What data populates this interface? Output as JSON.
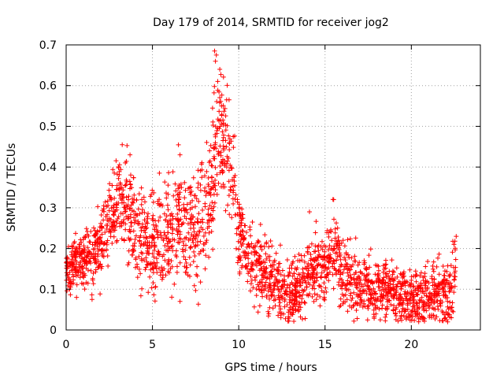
{
  "chart_data": {
    "type": "scatter",
    "title": "Day 179 of 2014, SRMTID for receiver jog2",
    "xlabel": "GPS time / hours",
    "ylabel": "SRMTID / TECUs",
    "xlim": [
      0,
      24
    ],
    "ylim": [
      0,
      0.7
    ],
    "grid": true,
    "marker": "+",
    "color": "#ff0000",
    "x_ticks": [
      "0",
      "5",
      "10",
      "15",
      "20"
    ],
    "y_ticks": [
      "0",
      "0.1",
      "0.2",
      "0.3",
      "0.4",
      "0.5",
      "0.6",
      "0.7"
    ],
    "trend": [
      [
        0.0,
        0.15
      ],
      [
        0.5,
        0.16
      ],
      [
        1.0,
        0.17
      ],
      [
        1.5,
        0.18
      ],
      [
        2.0,
        0.21
      ],
      [
        2.5,
        0.27
      ],
      [
        3.0,
        0.31
      ],
      [
        3.5,
        0.3
      ],
      [
        4.0,
        0.26
      ],
      [
        4.5,
        0.21
      ],
      [
        5.0,
        0.2
      ],
      [
        5.5,
        0.22
      ],
      [
        6.0,
        0.25
      ],
      [
        6.5,
        0.27
      ],
      [
        7.0,
        0.25
      ],
      [
        7.5,
        0.24
      ],
      [
        8.0,
        0.27
      ],
      [
        8.5,
        0.38
      ],
      [
        8.8,
        0.52
      ],
      [
        9.2,
        0.45
      ],
      [
        9.6,
        0.38
      ],
      [
        10.0,
        0.25
      ],
      [
        10.5,
        0.18
      ],
      [
        11.0,
        0.15
      ],
      [
        11.5,
        0.13
      ],
      [
        12.0,
        0.12
      ],
      [
        12.5,
        0.11
      ],
      [
        13.0,
        0.09
      ],
      [
        13.5,
        0.1
      ],
      [
        14.0,
        0.14
      ],
      [
        14.5,
        0.15
      ],
      [
        15.0,
        0.16
      ],
      [
        15.5,
        0.2
      ],
      [
        16.0,
        0.13
      ],
      [
        16.5,
        0.11
      ],
      [
        17.0,
        0.1
      ],
      [
        17.5,
        0.11
      ],
      [
        18.0,
        0.1
      ],
      [
        18.5,
        0.1
      ],
      [
        19.0,
        0.1
      ],
      [
        19.5,
        0.09
      ],
      [
        20.0,
        0.08
      ],
      [
        20.5,
        0.08
      ],
      [
        21.0,
        0.08
      ],
      [
        21.5,
        0.09
      ],
      [
        22.0,
        0.08
      ],
      [
        22.3,
        0.09
      ],
      [
        22.6,
        0.17
      ]
    ],
    "spread": [
      [
        0.0,
        0.03
      ],
      [
        2.5,
        0.05
      ],
      [
        3.5,
        0.07
      ],
      [
        5.0,
        0.07
      ],
      [
        7.0,
        0.07
      ],
      [
        8.5,
        0.09
      ],
      [
        9.5,
        0.08
      ],
      [
        10.5,
        0.05
      ],
      [
        13.0,
        0.04
      ],
      [
        15.0,
        0.05
      ],
      [
        18.0,
        0.04
      ],
      [
        20.0,
        0.035
      ],
      [
        22.6,
        0.05
      ]
    ],
    "extremes": [
      [
        3.25,
        0.455
      ],
      [
        3.7,
        0.43
      ],
      [
        5.4,
        0.385
      ],
      [
        6.6,
        0.43
      ],
      [
        8.6,
        0.685
      ],
      [
        8.7,
        0.675
      ],
      [
        8.65,
        0.66
      ],
      [
        8.9,
        0.64
      ],
      [
        9.3,
        0.565
      ],
      [
        9.0,
        0.55
      ],
      [
        15.5,
        0.32
      ],
      [
        14.1,
        0.29
      ],
      [
        22.6,
        0.23
      ],
      [
        11.7,
        0.045
      ],
      [
        12.5,
        0.04
      ],
      [
        13.3,
        0.05
      ],
      [
        18.2,
        0.025
      ],
      [
        20.7,
        0.03
      ],
      [
        22.1,
        0.02
      ],
      [
        1.5,
        0.075
      ],
      [
        0.6,
        0.08
      ],
      [
        6.6,
        0.07
      ]
    ],
    "point_count": 2400,
    "seed": 179
  }
}
